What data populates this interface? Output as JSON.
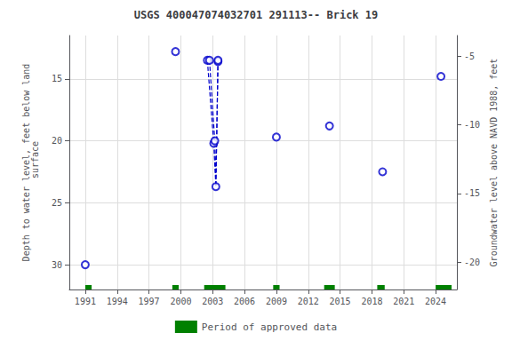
{
  "chart_data": {
    "type": "scatter",
    "title": "USGS 400047074032701 291113-- Brick 19",
    "y_label": "Depth to water level, feet below land\n surface",
    "y2_label": "Groundwater level above NAVD 1988, feet",
    "xlim": [
      1989.5,
      2026.0
    ],
    "xticks": [
      1991,
      1994,
      1997,
      2000,
      2003,
      2006,
      2009,
      2012,
      2015,
      2018,
      2021,
      2024
    ],
    "ylim": [
      32,
      11.5
    ],
    "yticks": [
      15,
      20,
      25,
      30
    ],
    "y2lim": [
      -22,
      -3.5
    ],
    "y2ticks": [
      -5,
      -10,
      -15,
      -20
    ],
    "grid": true,
    "legend": "bottom",
    "series": [
      {
        "type": "line",
        "line_style": "dashed",
        "color": "#0000cc",
        "x": [
          2002.5,
          2003.1,
          2003.3,
          2003.5
        ],
        "values": [
          13.5,
          20.2,
          23.7,
          13.6
        ]
      },
      {
        "type": "line",
        "line_style": "dashed",
        "color": "#0000cc",
        "x": [
          2002.7,
          2003.2,
          2003.3,
          2003.5
        ],
        "values": [
          13.5,
          20.0,
          23.7,
          13.5
        ]
      },
      {
        "type": "scatter",
        "marker": "open_circle",
        "color": "#0000cc",
        "x": [
          1991.0,
          1999.5,
          2002.5,
          2002.7,
          2003.1,
          2003.2,
          2003.3,
          2003.5,
          2003.5,
          2009.0,
          2014.0,
          2019.0,
          2024.5
        ],
        "values": [
          30.0,
          12.8,
          13.5,
          13.5,
          20.2,
          20.0,
          23.7,
          13.6,
          13.5,
          19.7,
          18.8,
          22.5,
          14.8
        ]
      },
      {
        "type": "period",
        "name": "Period of approved data",
        "color": "#008000",
        "periods": [
          [
            1991.0,
            1991.6
          ],
          [
            1999.2,
            1999.8
          ],
          [
            2002.2,
            2004.2
          ],
          [
            2008.7,
            2009.3
          ],
          [
            2013.5,
            2014.5
          ],
          [
            2018.5,
            2019.2
          ],
          [
            2024.0,
            2025.5
          ]
        ]
      }
    ]
  }
}
